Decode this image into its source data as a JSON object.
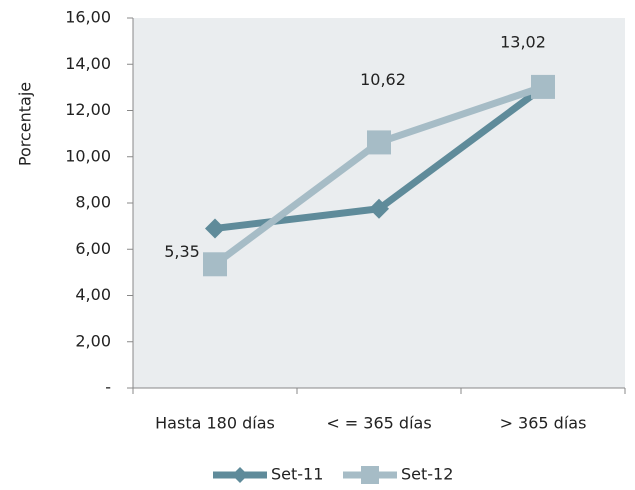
{
  "chart_data": {
    "type": "line",
    "ylabel": "Porcentaje",
    "categories": [
      "Hasta 180 días",
      "< = 365 días",
      "> 365 días"
    ],
    "series": [
      {
        "name": "Set-11",
        "color": "#5f8b9a",
        "values": [
          6.9,
          7.75,
          13.0
        ]
      },
      {
        "name": "Set-12",
        "color": "#a6bcc6",
        "values": [
          5.35,
          10.62,
          13.02
        ],
        "value_labels": [
          "5,35",
          "10,62",
          "13,02"
        ]
      }
    ],
    "ylim": [
      0,
      16
    ],
    "yticks": [
      {
        "value": 0,
        "label": "-"
      },
      {
        "value": 2,
        "label": "2,00"
      },
      {
        "value": 4,
        "label": "4,00"
      },
      {
        "value": 6,
        "label": "6,00"
      },
      {
        "value": 8,
        "label": "8,00"
      },
      {
        "value": 10,
        "label": "10,00"
      },
      {
        "value": 12,
        "label": "12,00"
      },
      {
        "value": 14,
        "label": "14,00"
      },
      {
        "value": 16,
        "label": "16,00"
      }
    ],
    "legend": "bottom"
  }
}
